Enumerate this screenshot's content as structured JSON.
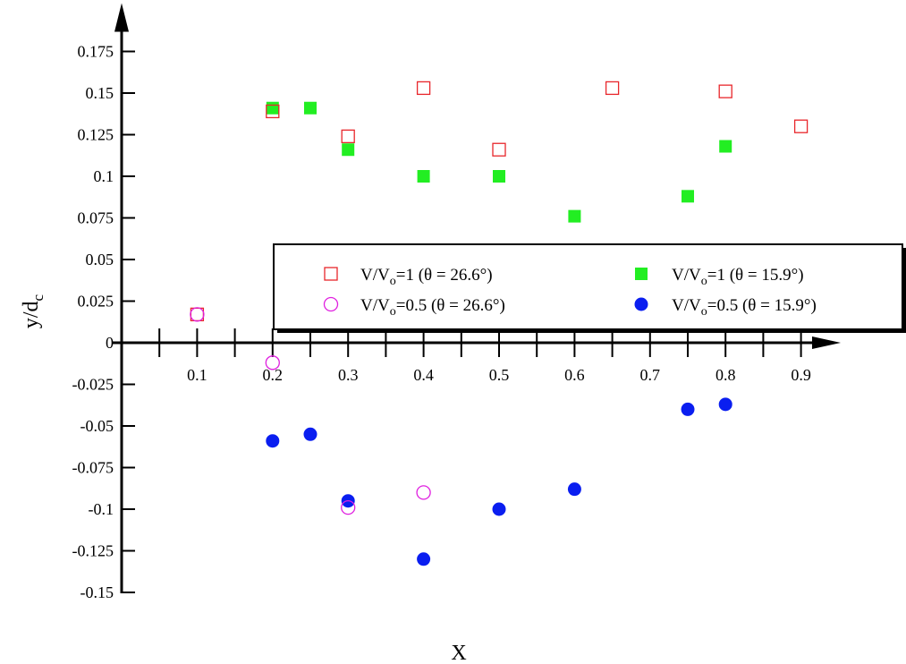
{
  "chart_data": {
    "type": "scatter",
    "xlabel": "X",
    "ylabel": "y/d",
    "ylabel_sub": "c",
    "xlim": [
      0,
      0.9
    ],
    "ylim": [
      -0.15,
      0.175
    ],
    "x_ticks_labeled": [
      "0.1",
      "0.2",
      "0.3",
      "0.4",
      "0.5",
      "0.6",
      "0.7",
      "0.8",
      "0.9"
    ],
    "y_ticks_labeled": [
      "0.175",
      "0.15",
      "0.125",
      "0.1",
      "0.075",
      "0.05",
      "0.025",
      "0",
      "-0.025",
      "-0.05",
      "-0.075",
      "-0.1",
      "-0.125",
      "-0.15"
    ],
    "grid": false,
    "legend_placement": "center-right",
    "series": [
      {
        "name": "V/V=1 (θ = 26.6°)",
        "name_parts": [
          "V/V",
          "o",
          "=1 (θ = 26.6°)"
        ],
        "marker": "square-open",
        "color": "#e8262b",
        "x": [
          0.1,
          0.2,
          0.3,
          0.4,
          0.5,
          0.65,
          0.8,
          0.9
        ],
        "y": [
          0.017,
          0.139,
          0.124,
          0.153,
          0.116,
          0.153,
          0.151,
          0.13
        ]
      },
      {
        "name": "V/V=1 (θ = 15.9°)",
        "name_parts": [
          "V/V",
          "o",
          "=1 (θ = 15.9°)"
        ],
        "marker": "square-filled",
        "color": "#22ee22",
        "x": [
          0.2,
          0.25,
          0.3,
          0.4,
          0.5,
          0.6,
          0.75,
          0.8
        ],
        "y": [
          0.141,
          0.141,
          0.116,
          0.1,
          0.1,
          0.076,
          0.088,
          0.118
        ]
      },
      {
        "name": "V/V=0.5 (θ = 26.6°)",
        "name_parts": [
          "V/V",
          "o",
          "=0.5 (θ = 26.6°)"
        ],
        "marker": "circle-open",
        "color": "#e020e0",
        "x": [
          0.1,
          0.2,
          0.3,
          0.4
        ],
        "y": [
          0.017,
          -0.012,
          -0.099,
          -0.09
        ]
      },
      {
        "name": "V/V=0.5 (θ = 15.9°)",
        "name_parts": [
          "V/V",
          "o",
          "=0.5 (θ = 15.9°)"
        ],
        "marker": "circle-filled",
        "color": "#0a1ef0",
        "x": [
          0.2,
          0.25,
          0.3,
          0.4,
          0.5,
          0.6,
          0.75,
          0.8
        ],
        "y": [
          -0.059,
          -0.055,
          -0.095,
          -0.13,
          -0.1,
          -0.088,
          -0.04,
          -0.037
        ]
      }
    ]
  }
}
